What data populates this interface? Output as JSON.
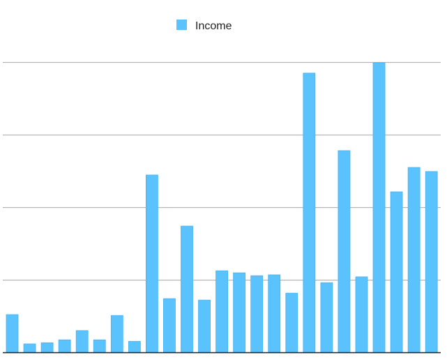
{
  "chart_data": {
    "type": "bar",
    "title": "",
    "xlabel": "",
    "ylabel": "",
    "legend": {
      "position": "top",
      "entries": [
        "Income"
      ]
    },
    "grid": true,
    "ylim": [
      0,
      100
    ],
    "gridlines": [
      25,
      50,
      75,
      100
    ],
    "series": [
      {
        "name": "Income",
        "color": "#5AC2FC",
        "values": [
          13.0,
          2.9,
          3.3,
          4.3,
          7.5,
          4.3,
          12.7,
          3.8,
          61.1,
          18.5,
          43.5,
          18.0,
          28.1,
          27.4,
          26.4,
          26.7,
          20.4,
          96.2,
          24.0,
          69.5,
          26.0,
          99.8,
          55.3,
          63.7,
          62.3
        ]
      }
    ]
  }
}
